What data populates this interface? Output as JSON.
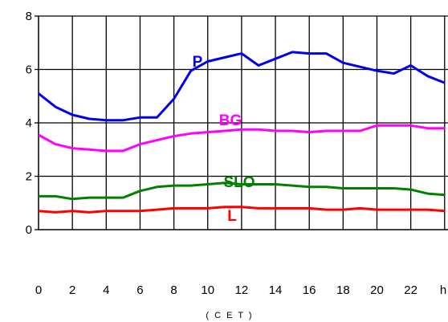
{
  "chart_data": {
    "type": "line",
    "title": "",
    "xlabel": "( C E T )",
    "ylabel": "",
    "x": [
      0,
      1,
      2,
      3,
      4,
      5,
      6,
      7,
      8,
      9,
      10,
      11,
      12,
      13,
      14,
      15,
      16,
      17,
      18,
      19,
      20,
      21,
      22,
      23,
      24
    ],
    "xlim": [
      0,
      24
    ],
    "ylim": [
      0,
      8
    ],
    "yticks": [
      "0",
      "2",
      "4",
      "6",
      "8"
    ],
    "xtick_labels": [
      "0",
      "2",
      "4",
      "6",
      "8",
      "10",
      "12",
      "14",
      "16",
      "18",
      "20",
      "22",
      "h"
    ],
    "grid": true,
    "series": [
      {
        "name": "P",
        "color": "#0000ee",
        "values": [
          5.1,
          4.6,
          4.3,
          4.15,
          4.1,
          4.1,
          4.2,
          4.2,
          4.9,
          5.95,
          6.3,
          6.45,
          6.6,
          6.15,
          6.4,
          6.65,
          6.6,
          6.6,
          6.25,
          6.1,
          5.95,
          5.85,
          6.15,
          5.75,
          5.5
        ]
      },
      {
        "name": "BG",
        "color": "#ff00ff",
        "values": [
          3.55,
          3.2,
          3.05,
          3.0,
          2.95,
          2.95,
          3.2,
          3.35,
          3.5,
          3.6,
          3.65,
          3.7,
          3.75,
          3.75,
          3.7,
          3.7,
          3.65,
          3.7,
          3.7,
          3.7,
          3.9,
          3.9,
          3.9,
          3.8,
          3.8
        ]
      },
      {
        "name": "SLO",
        "color": "#008000",
        "values": [
          1.25,
          1.25,
          1.15,
          1.2,
          1.2,
          1.2,
          1.45,
          1.6,
          1.65,
          1.65,
          1.7,
          1.75,
          1.7,
          1.7,
          1.7,
          1.65,
          1.6,
          1.6,
          1.55,
          1.55,
          1.55,
          1.55,
          1.5,
          1.35,
          1.3
        ]
      },
      {
        "name": "L",
        "color": "#ff0000",
        "values": [
          0.7,
          0.65,
          0.7,
          0.65,
          0.7,
          0.7,
          0.7,
          0.75,
          0.8,
          0.8,
          0.8,
          0.85,
          0.85,
          0.8,
          0.8,
          0.8,
          0.8,
          0.75,
          0.75,
          0.8,
          0.75,
          0.75,
          0.75,
          0.75,
          0.7
        ]
      }
    ]
  }
}
